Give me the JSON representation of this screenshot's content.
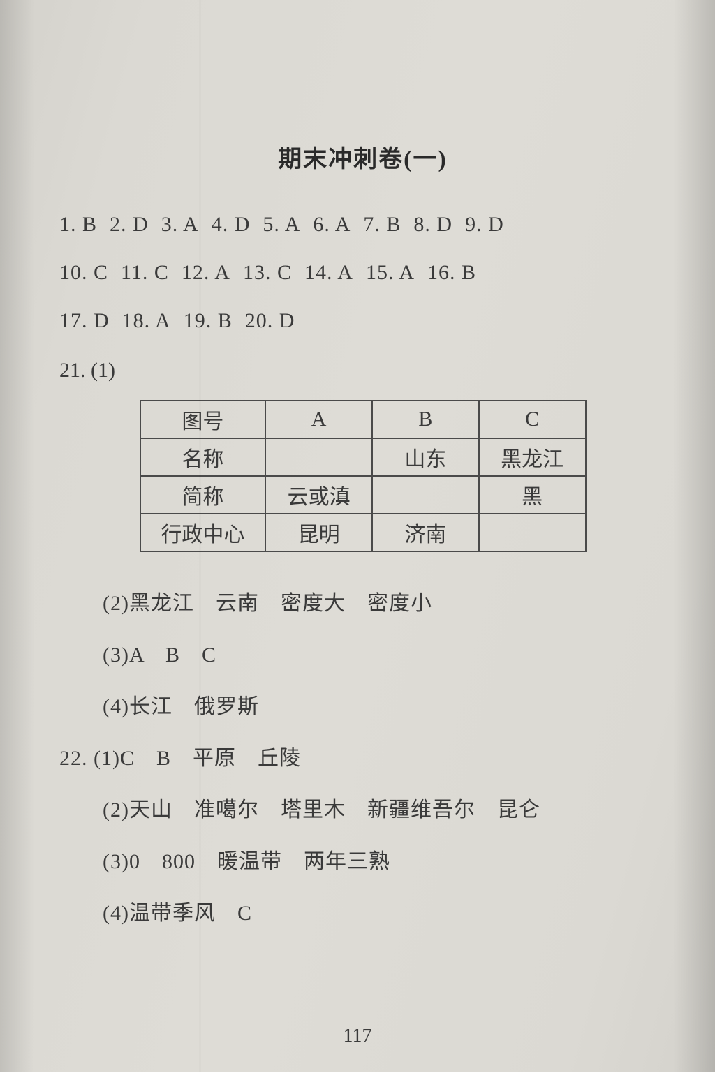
{
  "title": "期末冲刺卷(一)",
  "answers": {
    "line1": [
      {
        "n": "1.",
        "a": "B"
      },
      {
        "n": "2.",
        "a": "D"
      },
      {
        "n": "3.",
        "a": "A"
      },
      {
        "n": "4.",
        "a": "D"
      },
      {
        "n": "5.",
        "a": "A"
      },
      {
        "n": "6.",
        "a": "A"
      },
      {
        "n": "7.",
        "a": "B"
      },
      {
        "n": "8.",
        "a": "D"
      },
      {
        "n": "9.",
        "a": "D"
      }
    ],
    "line2": [
      {
        "n": "10.",
        "a": "C"
      },
      {
        "n": "11.",
        "a": "C"
      },
      {
        "n": "12.",
        "a": "A"
      },
      {
        "n": "13.",
        "a": "C"
      },
      {
        "n": "14.",
        "a": "A"
      },
      {
        "n": "15.",
        "a": "A"
      },
      {
        "n": "16.",
        "a": "B"
      }
    ],
    "line3": [
      {
        "n": "17.",
        "a": "D"
      },
      {
        "n": "18.",
        "a": "A"
      },
      {
        "n": "19.",
        "a": "B"
      },
      {
        "n": "20.",
        "a": "D"
      }
    ]
  },
  "q21_label": "21. (1)",
  "table": {
    "headers": [
      "图号",
      "A",
      "B",
      "C"
    ],
    "rows": [
      {
        "label": "名称",
        "cells": [
          "",
          "山东",
          "黑龙江"
        ]
      },
      {
        "label": "简称",
        "cells": [
          "云或滇",
          "",
          "黑"
        ]
      },
      {
        "label": "行政中心",
        "cells": [
          "昆明",
          "济南",
          ""
        ]
      }
    ]
  },
  "sub21": [
    "(2)黑龙江　云南　密度大　密度小",
    "(3)A　B　C",
    "(4)长江　俄罗斯"
  ],
  "q22": [
    "22. (1)C　B　平原　丘陵",
    "(2)天山　准噶尔　塔里木　新疆维吾尔　昆仑",
    "(3)0　800　暖温带　两年三熟",
    "(4)温带季风　C"
  ],
  "page_number": "117",
  "style": {
    "background_color": "#d8d6d1",
    "text_color": "#3a3a3a",
    "border_color": "#4a4a4a",
    "title_fontsize": 34,
    "body_fontsize": 30,
    "font_family": "SimSun"
  }
}
